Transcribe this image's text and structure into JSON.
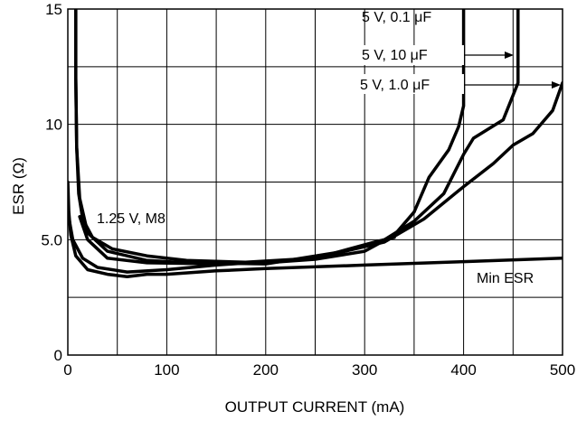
{
  "chart_data": {
    "type": "line",
    "title": "",
    "xlabel": "OUTPUT CURRENT (mA)",
    "ylabel": "ESR (Ω)",
    "xlim": [
      0,
      500
    ],
    "ylim": [
      0,
      15
    ],
    "grid": true,
    "x_ticks": [
      0,
      100,
      200,
      300,
      400,
      500
    ],
    "x_tick_labels": [
      "0",
      "100",
      "200",
      "300",
      "400",
      "500"
    ],
    "y_ticks": [
      0,
      5,
      10,
      15
    ],
    "y_tick_labels": [
      "0",
      "5.0",
      "10",
      "15"
    ],
    "series": [
      {
        "name": "5 V, 0.1 μF",
        "points": [
          [
            8,
            15.5
          ],
          [
            8,
            12
          ],
          [
            9,
            9
          ],
          [
            11,
            7
          ],
          [
            15,
            5.9
          ],
          [
            25,
            5.1
          ],
          [
            45,
            4.6
          ],
          [
            80,
            4.3
          ],
          [
            120,
            4.1
          ],
          [
            200,
            4.0
          ],
          [
            250,
            4.15
          ],
          [
            300,
            4.5
          ],
          [
            330,
            5.2
          ],
          [
            350,
            6.2
          ],
          [
            365,
            7.7
          ],
          [
            385,
            8.9
          ],
          [
            395,
            9.9
          ],
          [
            400,
            10.8
          ],
          [
            400,
            15.5
          ]
        ]
      },
      {
        "name": "5 V, 10 μF",
        "points": [
          [
            8,
            15.5
          ],
          [
            8,
            12
          ],
          [
            9,
            9
          ],
          [
            12,
            6.8
          ],
          [
            20,
            5.3
          ],
          [
            40,
            4.5
          ],
          [
            80,
            4.1
          ],
          [
            120,
            4.0
          ],
          [
            200,
            3.95
          ],
          [
            280,
            4.5
          ],
          [
            320,
            5.0
          ],
          [
            350,
            5.8
          ],
          [
            380,
            7.0
          ],
          [
            400,
            8.7
          ],
          [
            410,
            9.4
          ],
          [
            440,
            10.2
          ],
          [
            455,
            11.8
          ],
          [
            455,
            15.5
          ]
        ]
      },
      {
        "name": "5 V, 1.0 μF",
        "points": [
          [
            12,
            6.0
          ],
          [
            20,
            5.0
          ],
          [
            40,
            4.2
          ],
          [
            80,
            4.0
          ],
          [
            150,
            3.95
          ],
          [
            250,
            4.2
          ],
          [
            320,
            4.9
          ],
          [
            360,
            5.9
          ],
          [
            400,
            7.3
          ],
          [
            430,
            8.3
          ],
          [
            450,
            9.1
          ],
          [
            470,
            9.6
          ],
          [
            490,
            10.6
          ],
          [
            500,
            11.8
          ]
        ]
      },
      {
        "name": "1.25 V, M8",
        "points": [
          [
            0,
            6.2
          ],
          [
            5,
            5.0
          ],
          [
            15,
            4.2
          ],
          [
            30,
            3.8
          ],
          [
            60,
            3.6
          ],
          [
            100,
            3.7
          ],
          [
            150,
            3.9
          ],
          [
            250,
            4.2
          ],
          [
            310,
            4.9
          ],
          [
            330,
            5.1
          ]
        ]
      },
      {
        "name": "Min ESR",
        "points": [
          [
            0,
            7.5
          ],
          [
            1,
            6.2
          ],
          [
            3,
            5.2
          ],
          [
            8,
            4.3
          ],
          [
            20,
            3.7
          ],
          [
            40,
            3.5
          ],
          [
            60,
            3.4
          ],
          [
            80,
            3.5
          ],
          [
            100,
            3.5
          ],
          [
            150,
            3.65
          ],
          [
            200,
            3.75
          ],
          [
            300,
            3.9
          ],
          [
            400,
            4.05
          ],
          [
            500,
            4.2
          ]
        ]
      }
    ],
    "annotations": [
      {
        "text": "5 V, 0.1 μF"
      },
      {
        "text": "5 V, 10 μF"
      },
      {
        "text": "5 V, 1.0 μF"
      },
      {
        "text": "1.25 V, M8"
      },
      {
        "text": "Min ESR"
      }
    ]
  }
}
